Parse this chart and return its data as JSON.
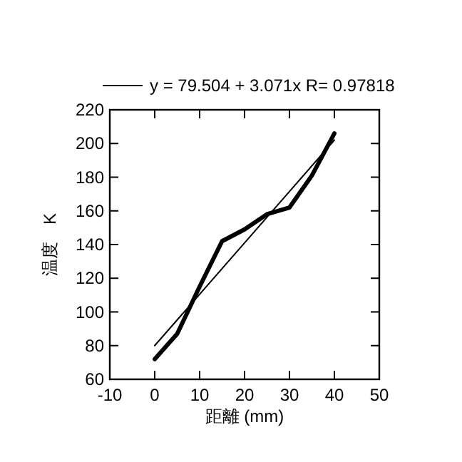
{
  "chart_data": {
    "type": "line",
    "xlabel": "距離 (mm)",
    "ylabel": "温度　K",
    "series": [
      {
        "color": "#000000",
        "x": [
          0,
          5,
          10,
          15,
          20,
          25,
          30,
          35,
          40
        ],
        "values": [
          72,
          87,
          115,
          142,
          149,
          158,
          162,
          181,
          206
        ]
      },
      {
        "name": "y = 79.504 + 3.071x R= 0.97818",
        "color": "#000000",
        "x": [
          0,
          40
        ],
        "values": [
          80,
          202
        ]
      }
    ],
    "xlim": [
      -10,
      50
    ],
    "xticks": [
      -10,
      0,
      10,
      20,
      30,
      40,
      50
    ],
    "ylim": [
      60,
      220
    ],
    "yticks": [
      60,
      80,
      100,
      120,
      140,
      160,
      180,
      200,
      220
    ],
    "legend": "top",
    "grid": false,
    "line_style": "solid"
  }
}
